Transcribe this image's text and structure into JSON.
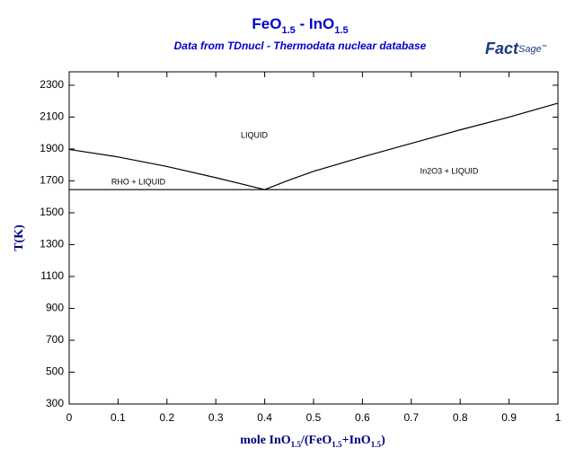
{
  "chart_data": {
    "type": "line",
    "title": [
      "FeO",
      "1.5",
      " - InO",
      "1.5"
    ],
    "subtitle": "Data from TDnucl - Thermodata nuclear database",
    "logo": [
      "Fact",
      "Sage",
      "™"
    ],
    "xlabel": [
      "mole InO",
      "1.5",
      "/(FeO",
      "1.5",
      "+InO",
      "1.5",
      ")"
    ],
    "ylabel": "T(K)",
    "xlim": [
      0,
      1
    ],
    "ylim": [
      300,
      2384
    ],
    "xticks": [
      0,
      0.1,
      0.2,
      0.3,
      0.4,
      0.5,
      0.6,
      0.7,
      0.8,
      0.9,
      1
    ],
    "yticks": [
      300,
      500,
      700,
      900,
      1100,
      1300,
      1500,
      1700,
      1900,
      2100,
      2300
    ],
    "color": "#000000",
    "series": [
      {
        "x": [
          0,
          0.1,
          0.2,
          0.3,
          0.4
        ],
        "values": [
          1897,
          1850,
          1790,
          1720,
          1645
        ]
      },
      {
        "x": [
          0.4,
          0.45,
          0.5,
          0.6,
          0.7,
          0.8,
          0.9,
          1
        ],
        "values": [
          1645,
          1705,
          1760,
          1850,
          1935,
          2020,
          2100,
          2187
        ]
      },
      {
        "x": [
          0,
          1
        ],
        "values": [
          1645,
          1645
        ]
      }
    ],
    "annotations": [
      "LIQUID",
      "RHO + LIQUID",
      "In2O3 + LIQUID"
    ]
  }
}
